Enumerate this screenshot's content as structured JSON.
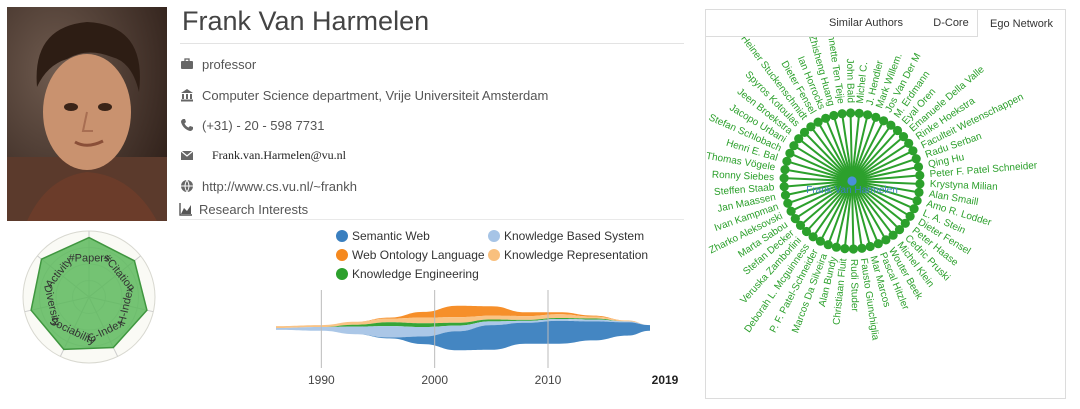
{
  "profile": {
    "name": "Frank Van Harmelen",
    "position": "professor",
    "affiliation": "Computer Science department, Vrije Universiteit Amsterdam",
    "phone": "(+31) - 20 - 598 7731",
    "email": "Frank.van.Harmelen@vu.nl",
    "homepage": "http://www.cs.vu.nl/~frankh",
    "research_interests_label": "Research Interests"
  },
  "radar": {
    "labels": [
      "#Papers",
      "#Citation",
      "H-Index",
      "G-Index",
      "Sociability",
      "Diversity",
      "Activity"
    ],
    "values": [
      0.9,
      0.88,
      0.9,
      0.85,
      0.88,
      0.9,
      0.92
    ],
    "fill_color": "#5cb85c"
  },
  "interests": {
    "legend": [
      {
        "name": "Semantic Web",
        "color": "#3a7fbf"
      },
      {
        "name": "Knowledge Based System",
        "color": "#a6c4e6"
      },
      {
        "name": "Web Ontology Language",
        "color": "#f5891f"
      },
      {
        "name": "Knowledge Representation",
        "color": "#f9c07e"
      },
      {
        "name": "Knowledge Engineering",
        "color": "#2ca02c"
      }
    ],
    "axis_ticks": [
      "1990",
      "2000",
      "2010"
    ],
    "axis_end": "2019"
  },
  "chart_data": {
    "type": "area",
    "x": [
      1986,
      1990,
      1993,
      1996,
      1999,
      2002,
      2005,
      2008,
      2011,
      2014,
      2017,
      2019
    ],
    "series": [
      {
        "name": "Semantic Web",
        "values": [
          0,
          0,
          0,
          0.5,
          4,
          10,
          13,
          11,
          12,
          10,
          7,
          3
        ]
      },
      {
        "name": "Knowledge Based System",
        "values": [
          1,
          2,
          4,
          6,
          5,
          3,
          2,
          1,
          1,
          1,
          0.5,
          0
        ]
      },
      {
        "name": "Web Ontology Language",
        "values": [
          0,
          0,
          0,
          0.5,
          3,
          6,
          5,
          2,
          1,
          0.5,
          0,
          0
        ]
      },
      {
        "name": "Knowledge Representation",
        "values": [
          1,
          1,
          1.5,
          2,
          3,
          3,
          2,
          2,
          2,
          1,
          0.5,
          0
        ]
      },
      {
        "name": "Knowledge Engineering",
        "values": [
          0,
          0,
          1,
          2,
          2,
          1.5,
          1,
          0.5,
          0.5,
          0.5,
          0,
          0
        ]
      }
    ],
    "xlim": [
      1986,
      2019
    ]
  },
  "panel": {
    "tabs": [
      "Similar Authors",
      "D-Core",
      "Ego Network"
    ],
    "active_tab": "Ego Network",
    "ego": {
      "center": "Frank Van Harmelen",
      "center_color": "#4a90d9",
      "node_color": "#2ca02c",
      "neighbors": [
        "John Bald",
        "Michel C.",
        "J. Hendler",
        "Mark Willem.",
        "Jos Van Der M",
        "M. Erdmann",
        "Eyal Oren",
        "Emanuele Della Valle",
        "Rinke Hoekstra",
        "Faculteit Wetenschappen",
        "Radu Serban",
        "Qing Hu",
        "Peter F. Patel Schneider",
        "Krystyna Milian",
        "Alan Smaill",
        "Amo R. Lodder",
        "L. A. Stein",
        "Dieter Fensel",
        "Peter Haase",
        "Cedric Pruski",
        "Michel Klein",
        "Wouter Beek",
        "Pascal Hitzler",
        "Mar Marcos",
        "Fausto Giunchiglia",
        "Rudi Studer",
        "Christiaan Fluit",
        "Alan Bundy",
        "Marcos Da Silveira",
        "P. F. Patel-Schneider",
        "Deborah L. Mcguinness",
        "Veruska Zamborlini",
        "Stefan Decker",
        "Marta Sabou",
        "Zharko Aleksovski",
        "Ivan Kampman",
        "Jan Maassen",
        "Steffen Staab",
        "Ronny Siebes",
        "Thomas Vögele",
        "Henri E. Bal",
        "Stefan Schlobach",
        "Jacopo Urbani",
        "Jeen Broekstra",
        "Spyros Kotoulas",
        "Heiner Stuckenschmidt",
        "Dieter Fensel",
        "Ian Horrocks",
        "Zhisheng Huang",
        "Annette Ten Teije"
      ]
    }
  }
}
